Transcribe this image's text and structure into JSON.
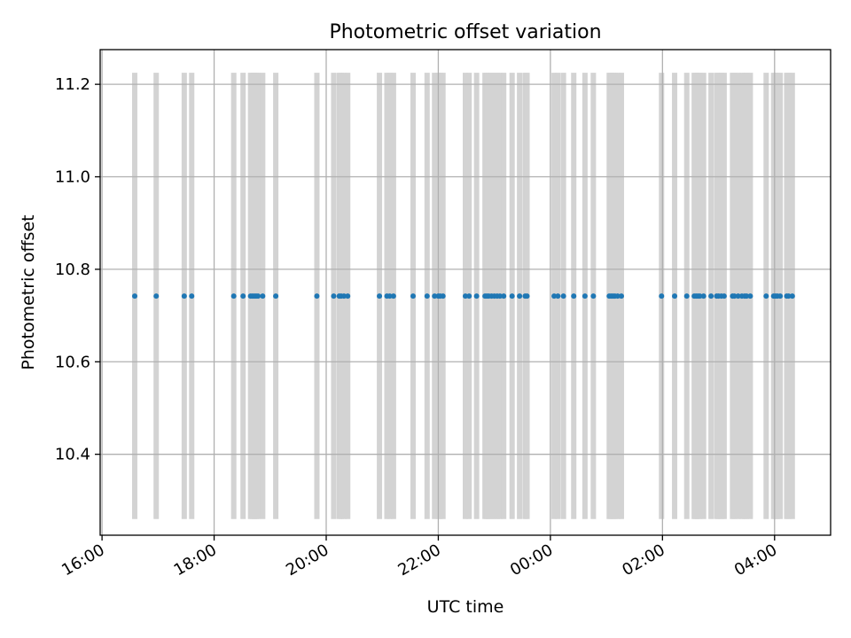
{
  "chart_data": {
    "type": "scatter",
    "title": "Photometric offset variation",
    "xlabel": "UTC time",
    "ylabel": "Photometric offset",
    "x_tick_labels": [
      "16:00",
      "18:00",
      "20:00",
      "22:00",
      "00:00",
      "02:00",
      "04:00"
    ],
    "y_tick_labels": [
      "10.4",
      "10.6",
      "10.8",
      "11.0",
      "11.2"
    ],
    "y_ticks": [
      10.4,
      10.6,
      10.8,
      11.0,
      11.2
    ],
    "x_ticks": [
      "16:00",
      "18:00",
      "20:00",
      "22:00",
      "00:00",
      "02:00",
      "04:00"
    ],
    "xlim": [
      "15:58",
      "05:00"
    ],
    "ylim": [
      10.225,
      11.275
    ],
    "grid": true,
    "series": [
      {
        "color": "#1f77b4",
        "y_value": 10.742,
        "x": [
          "16:35",
          "16:58",
          "17:28",
          "17:36",
          "18:21",
          "18:31",
          "18:39",
          "18:41",
          "18:43",
          "18:45",
          "18:47",
          "18:52",
          "19:06",
          "19:50",
          "20:08",
          "20:14",
          "20:16",
          "20:19",
          "20:23",
          "20:57",
          "21:05",
          "21:08",
          "21:12",
          "21:33",
          "21:48",
          "21:56",
          "22:00",
          "22:02",
          "22:05",
          "22:29",
          "22:33",
          "22:41",
          "22:50",
          "22:52",
          "22:54",
          "22:57",
          "23:00",
          "23:03",
          "23:06",
          "23:10",
          "23:19",
          "23:27",
          "23:33",
          "23:35",
          "00:04",
          "00:08",
          "00:14",
          "00:25",
          "00:37",
          "00:46",
          "01:03",
          "01:05",
          "01:07",
          "01:09",
          "01:12",
          "01:16",
          "01:59",
          "02:13",
          "02:26",
          "02:34",
          "02:36",
          "02:38",
          "02:40",
          "02:44",
          "02:52",
          "02:58",
          "03:00",
          "03:03",
          "03:06",
          "03:15",
          "03:17",
          "03:21",
          "03:25",
          "03:28",
          "03:30",
          "03:34",
          "03:51",
          "03:59",
          "04:01",
          "04:03",
          "04:06",
          "04:13",
          "04:15",
          "04:19"
        ]
      }
    ],
    "bands": {
      "color": "#d3d3d3",
      "y_range": [
        10.26,
        11.225
      ],
      "x": [
        "16:35",
        "16:58",
        "17:28",
        "17:36",
        "18:21",
        "18:31",
        "18:39",
        "18:41",
        "18:43",
        "18:45",
        "18:47",
        "18:52",
        "19:06",
        "19:50",
        "20:08",
        "20:14",
        "20:16",
        "20:19",
        "20:23",
        "20:57",
        "21:05",
        "21:08",
        "21:12",
        "21:33",
        "21:48",
        "21:56",
        "22:00",
        "22:02",
        "22:05",
        "22:29",
        "22:33",
        "22:41",
        "22:50",
        "22:52",
        "22:54",
        "22:57",
        "23:00",
        "23:03",
        "23:06",
        "23:10",
        "23:19",
        "23:27",
        "23:33",
        "23:35",
        "00:04",
        "00:08",
        "00:14",
        "00:25",
        "00:37",
        "00:46",
        "01:03",
        "01:05",
        "01:07",
        "01:09",
        "01:12",
        "01:16",
        "01:59",
        "02:13",
        "02:26",
        "02:34",
        "02:36",
        "02:38",
        "02:40",
        "02:44",
        "02:52",
        "02:58",
        "03:00",
        "03:03",
        "03:06",
        "03:15",
        "03:17",
        "03:21",
        "03:25",
        "03:28",
        "03:30",
        "03:34",
        "03:51",
        "03:59",
        "04:01",
        "04:03",
        "04:06",
        "04:13",
        "04:15",
        "04:19"
      ]
    }
  }
}
